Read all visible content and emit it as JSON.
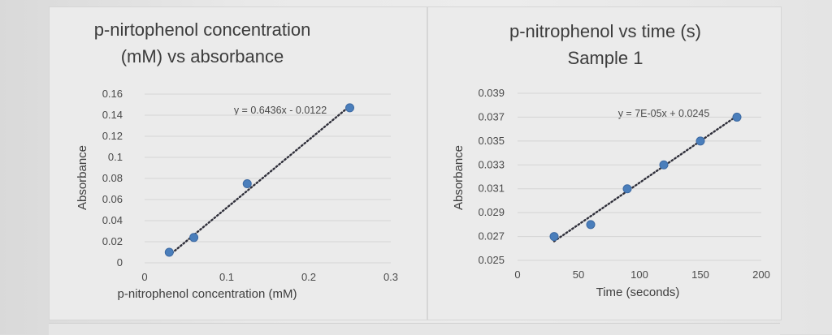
{
  "chart_data": [
    {
      "type": "scatter",
      "title": [
        "p-nirtophenol concentration",
        "(mM) vs absorbance"
      ],
      "xlabel": "p-nitrophenol concentration (mM)",
      "ylabel": "Absorbance",
      "xlim": [
        0,
        0.3
      ],
      "ylim": [
        0,
        0.16
      ],
      "x_ticks": [
        "0",
        "0.1",
        "0.2",
        "0.3"
      ],
      "y_ticks": [
        "0",
        "0.02",
        "0.04",
        "0.06",
        "0.08",
        "0.1",
        "0.12",
        "0.14",
        "0.16"
      ],
      "points": [
        {
          "x": 0.03,
          "y": 0.01
        },
        {
          "x": 0.06,
          "y": 0.024
        },
        {
          "x": 0.125,
          "y": 0.075
        },
        {
          "x": 0.25,
          "y": 0.147
        }
      ],
      "trendline": {
        "type": "linear",
        "slope": 0.6436,
        "intercept": -0.0122,
        "style": "dotted"
      },
      "equation": "y = 0.6436x - 0.0122",
      "grid": true,
      "marker_color": "#4a7ebb"
    },
    {
      "type": "scatter",
      "title": [
        "p-nitrophenol vs time (s)",
        "Sample 1"
      ],
      "xlabel": "Time (seconds)",
      "ylabel": "Absorbance",
      "xlim": [
        0,
        200
      ],
      "ylim": [
        0.025,
        0.039
      ],
      "x_ticks": [
        "0",
        "50",
        "100",
        "150",
        "200"
      ],
      "y_ticks": [
        "0.025",
        "0.027",
        "0.029",
        "0.031",
        "0.033",
        "0.035",
        "0.037",
        "0.039"
      ],
      "points": [
        {
          "x": 30,
          "y": 0.027
        },
        {
          "x": 60,
          "y": 0.028
        },
        {
          "x": 90,
          "y": 0.031
        },
        {
          "x": 120,
          "y": 0.033
        },
        {
          "x": 150,
          "y": 0.035
        },
        {
          "x": 180,
          "y": 0.037
        }
      ],
      "trendline": {
        "type": "linear",
        "slope": 7e-05,
        "intercept": 0.0245,
        "style": "dotted"
      },
      "equation": "y = 7E-05x + 0.0245",
      "grid": true,
      "marker_color": "#4a7ebb"
    }
  ]
}
